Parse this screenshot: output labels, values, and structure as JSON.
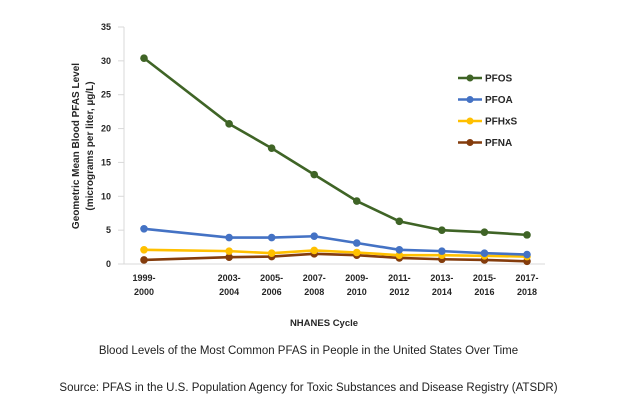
{
  "chart_data": {
    "type": "line",
    "title": "",
    "xlabel": "NHANES Cycle",
    "ylabel": [
      "Geometric Mean Blood PFAS Level",
      "(micrograms per liter, µg/L)"
    ],
    "categories": [
      "1999-2000",
      "2003-2004",
      "2005-2006",
      "2007-2008",
      "2009-2010",
      "2011-2012",
      "2013-2014",
      "2015-2016",
      "2017-2018"
    ],
    "category_years": [
      1999,
      2003,
      2005,
      2007,
      2009,
      2011,
      2013,
      2015,
      2017
    ],
    "category_labels": [
      [
        "1999-",
        "2000"
      ],
      [
        "2003-",
        "2004"
      ],
      [
        "2005-",
        "2006"
      ],
      [
        "2007-",
        "2008"
      ],
      [
        "2009-",
        "2010"
      ],
      [
        "2011-",
        "2012"
      ],
      [
        "2013-",
        "2014"
      ],
      [
        "2015-",
        "2016"
      ],
      [
        "2017-",
        "2018"
      ]
    ],
    "ylim": [
      0,
      35
    ],
    "yticks": [
      0,
      5,
      10,
      15,
      20,
      25,
      30,
      35
    ],
    "grid": false,
    "legend_position": "top-right",
    "series": [
      {
        "name": "PFOS",
        "color": "#3f6426",
        "values": [
          30.4,
          20.7,
          17.1,
          13.2,
          9.3,
          6.3,
          5.0,
          4.7,
          4.3
        ]
      },
      {
        "name": "PFOA",
        "color": "#4472c4",
        "values": [
          5.2,
          3.9,
          3.9,
          4.1,
          3.1,
          2.1,
          1.9,
          1.6,
          1.4
        ]
      },
      {
        "name": "PFHxS",
        "color": "#ffc000",
        "values": [
          2.1,
          1.9,
          1.6,
          2.0,
          1.7,
          1.3,
          1.3,
          1.2,
          1.1
        ]
      },
      {
        "name": "PFNA",
        "color": "#843c0c",
        "values": [
          0.6,
          1.0,
          1.1,
          1.5,
          1.3,
          0.9,
          0.7,
          0.6,
          0.4
        ]
      }
    ]
  },
  "caption": {
    "title": "Blood Levels of the Most Common PFAS in People in the United States Over Time",
    "source": "Source: PFAS in the U.S. Population Agency for Toxic Substances and Disease Registry (ATSDR)"
  }
}
